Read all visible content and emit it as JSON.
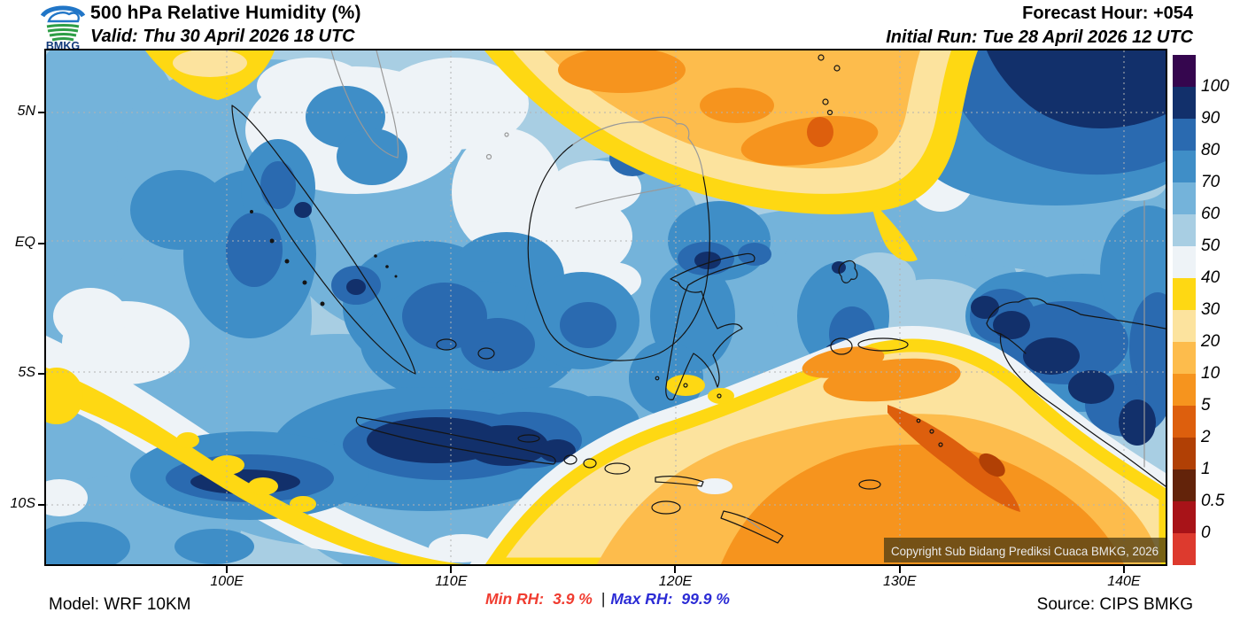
{
  "header": {
    "logo_text": "BMKG",
    "title": "500 hPa Relative Humidity (%)",
    "valid": "Valid: Thu 30 April 2026 18 UTC",
    "forecast_hour": "Forecast Hour: +054",
    "initial_run": "Initial Run: Tue 28 April 2026 12 UTC"
  },
  "footer": {
    "model": "Model: WRF 10KM",
    "min_rh_label": "Min RH:",
    "min_rh_value": "3.9 %",
    "separator": "|",
    "max_rh_label": "Max RH:",
    "max_rh_value": "99.9 %",
    "source": "Source: CIPS BMKG",
    "min_color": "#f03c30",
    "max_color": "#2b2bd5"
  },
  "map": {
    "copyright": "Copyright Sub Bidang Prediksi Cuaca BMKG, 2026",
    "axes": {
      "lon_ticks": [
        {
          "label": "100E",
          "value": 100
        },
        {
          "label": "110E",
          "value": 110
        },
        {
          "label": "120E",
          "value": 120
        },
        {
          "label": "130E",
          "value": 130
        },
        {
          "label": "140E",
          "value": 140
        }
      ],
      "lat_ticks": [
        {
          "label": "5N",
          "value": 5
        },
        {
          "label": "EQ",
          "value": 0
        },
        {
          "label": "5S",
          "value": -5
        },
        {
          "label": "10S",
          "value": -10
        }
      ],
      "lon_range": [
        91.94,
        141.86
      ],
      "lat_range": [
        7.37,
        -12.27
      ]
    }
  },
  "legend": {
    "title": "Relative Humidity (%)",
    "labels": [
      "100",
      "90",
      "80",
      "70",
      "60",
      "50",
      "40",
      "30",
      "20",
      "10",
      "5",
      "2",
      "1",
      "0.5",
      "0"
    ],
    "segments": [
      {
        "label": "100",
        "color": "#35064e"
      },
      {
        "label": "90",
        "color": "#12306b"
      },
      {
        "label": "80",
        "color": "#2a6ab0"
      },
      {
        "label": "70",
        "color": "#3f8ec7"
      },
      {
        "label": "60",
        "color": "#74b3da"
      },
      {
        "label": "50",
        "color": "#a8cee3"
      },
      {
        "label": "40",
        "color": "#eef3f7"
      },
      {
        "label": "30",
        "color": "#fed813"
      },
      {
        "label": "20",
        "color": "#fce39e"
      },
      {
        "label": "10",
        "color": "#fdbc4c"
      },
      {
        "label": "5",
        "color": "#f6941e"
      },
      {
        "label": "2",
        "color": "#dd5f0d"
      },
      {
        "label": "1",
        "color": "#b14005"
      },
      {
        "label": "0.5",
        "color": "#63230a"
      },
      {
        "label": "0",
        "color": "#a81318"
      },
      {
        "label": "",
        "color": "#dd3a2e"
      }
    ]
  },
  "palette": {
    "p90": "#12306b",
    "p80": "#2a6ab0",
    "p70": "#3f8ec7",
    "p60": "#74b3da",
    "p50": "#a8cee3",
    "p40": "#eef3f7",
    "p30": "#fed813",
    "p20": "#fce39e",
    "p10": "#fdbc4c",
    "p5": "#f6941e",
    "p2": "#dd5f0d",
    "p1": "#b14005"
  }
}
